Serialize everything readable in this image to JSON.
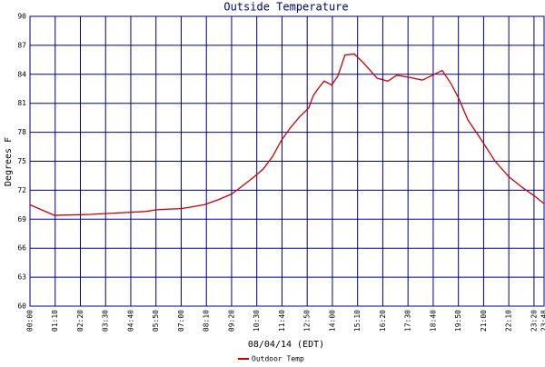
{
  "chart_data": {
    "type": "line",
    "title": "Outside Temperature",
    "xlabel": "08/04/14 (EDT)",
    "ylabel": "Degrees F",
    "x": [
      0,
      68,
      169,
      270,
      320,
      358,
      421,
      484,
      522,
      560,
      585,
      623,
      648,
      674,
      699,
      724,
      749,
      774,
      787,
      800,
      817,
      838,
      855,
      875,
      901,
      926,
      964,
      994,
      1019,
      1052,
      1090,
      1123,
      1145,
      1170,
      1191,
      1216,
      1254,
      1292,
      1330,
      1367,
      1405,
      1428
    ],
    "series": [
      {
        "name": "Outdoor Temp",
        "color": "#cc0000",
        "values": [
          70.5,
          69.4,
          69.5,
          69.7,
          69.8,
          70.0,
          70.1,
          70.5,
          71.0,
          71.6,
          72.3,
          73.4,
          74.2,
          75.5,
          77.2,
          78.5,
          79.6,
          80.5,
          81.8,
          82.5,
          83.3,
          82.9,
          83.8,
          86.0,
          86.1,
          85.2,
          83.6,
          83.3,
          83.9,
          83.7,
          83.4,
          84.0,
          84.4,
          83.0,
          81.5,
          79.3,
          77.2,
          75.0,
          73.4,
          72.3,
          71.3,
          70.6
        ]
      }
    ],
    "xlim": [
      0,
      1428
    ],
    "xticks": [
      {
        "value": 0,
        "label": "00:00"
      },
      {
        "value": 70,
        "label": "01:10"
      },
      {
        "value": 140,
        "label": "02:20"
      },
      {
        "value": 210,
        "label": "03:30"
      },
      {
        "value": 280,
        "label": "04:40"
      },
      {
        "value": 350,
        "label": "05:50"
      },
      {
        "value": 420,
        "label": "07:00"
      },
      {
        "value": 490,
        "label": "08:10"
      },
      {
        "value": 560,
        "label": "09:20"
      },
      {
        "value": 630,
        "label": "10:30"
      },
      {
        "value": 700,
        "label": "11:40"
      },
      {
        "value": 770,
        "label": "12:50"
      },
      {
        "value": 840,
        "label": "14:00"
      },
      {
        "value": 910,
        "label": "15:10"
      },
      {
        "value": 980,
        "label": "16:20"
      },
      {
        "value": 1050,
        "label": "17:30"
      },
      {
        "value": 1120,
        "label": "18:40"
      },
      {
        "value": 1190,
        "label": "19:50"
      },
      {
        "value": 1260,
        "label": "21:00"
      },
      {
        "value": 1330,
        "label": "22:10"
      },
      {
        "value": 1400,
        "label": "23:20"
      },
      {
        "value": 1428,
        "label": "23:48"
      }
    ],
    "ylim": [
      60,
      90
    ],
    "yticks": [
      60,
      63,
      66,
      69,
      72,
      75,
      78,
      81,
      84,
      87,
      90
    ],
    "grid": true,
    "grid_color": "#000080"
  }
}
